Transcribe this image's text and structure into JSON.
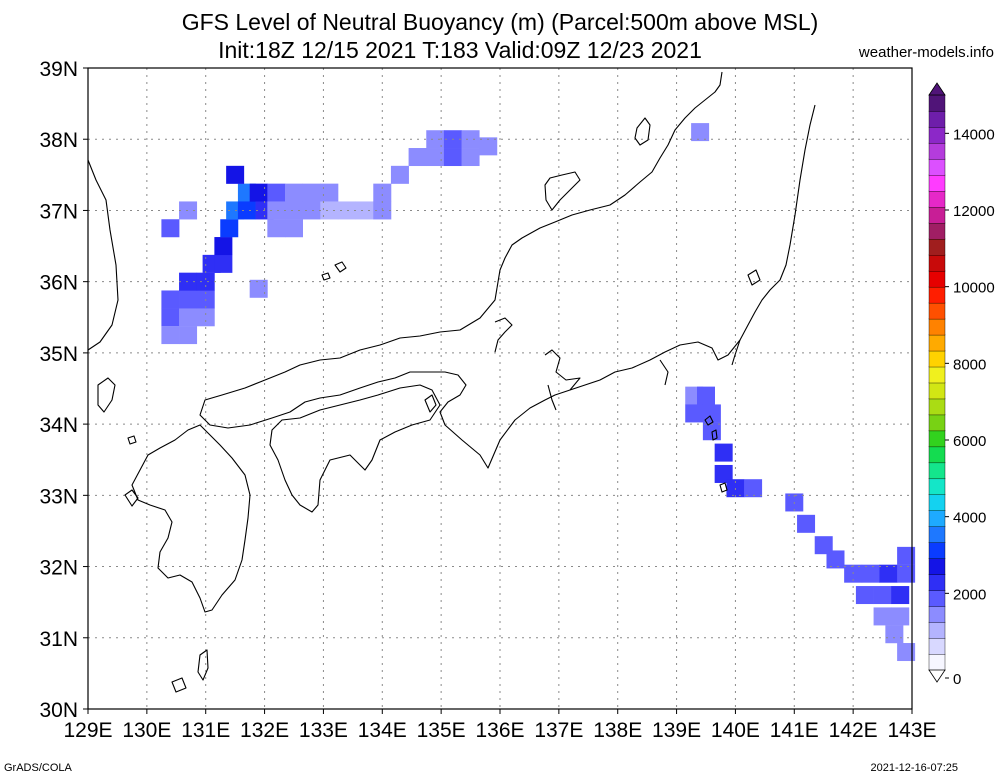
{
  "title_line1": "GFS Level of Neutral Buoyancy (m) (Parcel:500m above MSL)",
  "title_line2": "Init:18Z 12/15 2021 T:183 Valid:09Z 12/23 2021",
  "site": "weather-models.info",
  "footer_left": "GrADS/COLA",
  "footer_right": "2021-12-16-07:25",
  "map": {
    "lon_labels": [
      "129E",
      "130E",
      "131E",
      "132E",
      "133E",
      "134E",
      "135E",
      "136E",
      "137E",
      "138E",
      "139E",
      "140E",
      "141E",
      "142E",
      "143E"
    ],
    "lat_labels": [
      "30N",
      "31N",
      "32N",
      "33N",
      "34N",
      "35N",
      "36N",
      "37N",
      "38N",
      "39N"
    ],
    "lon_range": [
      129,
      143
    ],
    "lat_range": [
      30,
      39
    ],
    "grid": "dotted"
  },
  "colorbar": {
    "min": 0,
    "max": 15000,
    "tick_values": [
      0,
      2000,
      4000,
      6000,
      8000,
      10000,
      12000,
      14000
    ],
    "tick_labels": [
      "0",
      "2000",
      "4000",
      "6000",
      "8000",
      "10000",
      "12000",
      "14000"
    ],
    "colors": [
      "#f6f6ff",
      "#d8d8ff",
      "#b4b4ff",
      "#8c8cff",
      "#5a5aff",
      "#2f2ff5",
      "#1414e6",
      "#0a3cff",
      "#1e78ff",
      "#1eaaff",
      "#14d2f0",
      "#14e6c8",
      "#14e68c",
      "#14dc50",
      "#32d21e",
      "#78d214",
      "#aadc14",
      "#d2e614",
      "#f0f01e",
      "#ffd200",
      "#ffaa00",
      "#ff8200",
      "#ff5000",
      "#ff1e00",
      "#e60000",
      "#c80a0a",
      "#a01e1e",
      "#a01e64",
      "#c81e96",
      "#e628c8",
      "#ff3cff",
      "#dc50ff",
      "#b43cdc",
      "#8c28c8",
      "#6e1eaa",
      "#501478"
    ]
  },
  "cape_cells": [
    {
      "lon": 130.4,
      "lat": 35.5,
      "value": 1800
    },
    {
      "lon": 130.7,
      "lat": 35.5,
      "value": 1500
    },
    {
      "lon": 131.0,
      "lat": 35.5,
      "value": 1600
    },
    {
      "lon": 130.4,
      "lat": 35.25,
      "value": 1500
    },
    {
      "lon": 130.7,
      "lat": 35.25,
      "value": 1400
    },
    {
      "lon": 130.4,
      "lat": 35.75,
      "value": 1700
    },
    {
      "lon": 130.7,
      "lat": 35.75,
      "value": 2000
    },
    {
      "lon": 131.0,
      "lat": 35.75,
      "value": 1900
    },
    {
      "lon": 130.7,
      "lat": 36.0,
      "value": 2100
    },
    {
      "lon": 131.0,
      "lat": 36.0,
      "value": 2200
    },
    {
      "lon": 131.1,
      "lat": 36.25,
      "value": 2400
    },
    {
      "lon": 131.3,
      "lat": 36.25,
      "value": 2300
    },
    {
      "lon": 131.3,
      "lat": 36.5,
      "value": 2600
    },
    {
      "lon": 131.4,
      "lat": 36.75,
      "value": 3000
    },
    {
      "lon": 131.5,
      "lat": 37.0,
      "value": 3600
    },
    {
      "lon": 131.7,
      "lat": 37.25,
      "value": 3400
    },
    {
      "lon": 131.5,
      "lat": 37.5,
      "value": 2800
    },
    {
      "lon": 131.7,
      "lat": 37.0,
      "value": 3000
    },
    {
      "lon": 131.9,
      "lat": 37.25,
      "value": 2600
    },
    {
      "lon": 132.0,
      "lat": 37.0,
      "value": 2200
    },
    {
      "lon": 132.2,
      "lat": 37.25,
      "value": 1800
    },
    {
      "lon": 132.5,
      "lat": 37.25,
      "value": 1600
    },
    {
      "lon": 132.8,
      "lat": 37.25,
      "value": 1500
    },
    {
      "lon": 133.1,
      "lat": 37.25,
      "value": 1600
    },
    {
      "lon": 132.2,
      "lat": 37.0,
      "value": 1400
    },
    {
      "lon": 132.5,
      "lat": 37.0,
      "value": 1500
    },
    {
      "lon": 132.8,
      "lat": 37.0,
      "value": 1300
    },
    {
      "lon": 133.1,
      "lat": 37.0,
      "value": 1200
    },
    {
      "lon": 133.4,
      "lat": 37.0,
      "value": 1200
    },
    {
      "lon": 133.7,
      "lat": 37.0,
      "value": 1200
    },
    {
      "lon": 134.0,
      "lat": 37.0,
      "value": 1300
    },
    {
      "lon": 134.0,
      "lat": 37.25,
      "value": 1300
    },
    {
      "lon": 134.3,
      "lat": 37.5,
      "value": 1300
    },
    {
      "lon": 134.6,
      "lat": 37.75,
      "value": 1400
    },
    {
      "lon": 134.9,
      "lat": 37.75,
      "value": 1600
    },
    {
      "lon": 135.2,
      "lat": 37.75,
      "value": 1700
    },
    {
      "lon": 134.9,
      "lat": 38.0,
      "value": 1600
    },
    {
      "lon": 135.2,
      "lat": 38.0,
      "value": 1800
    },
    {
      "lon": 135.5,
      "lat": 38.0,
      "value": 1500
    },
    {
      "lon": 135.5,
      "lat": 37.75,
      "value": 1500
    },
    {
      "lon": 135.8,
      "lat": 37.9,
      "value": 1300
    },
    {
      "lon": 132.2,
      "lat": 36.75,
      "value": 1300
    },
    {
      "lon": 132.5,
      "lat": 36.75,
      "value": 1300
    },
    {
      "lon": 130.4,
      "lat": 36.75,
      "value": 1700
    },
    {
      "lon": 130.7,
      "lat": 37.0,
      "value": 1600
    },
    {
      "lon": 131.9,
      "lat": 35.9,
      "value": 1600
    },
    {
      "lon": 139.4,
      "lat": 38.1,
      "value": 1500
    },
    {
      "lon": 139.3,
      "lat": 34.4,
      "value": 1600
    },
    {
      "lon": 139.5,
      "lat": 34.4,
      "value": 1800
    },
    {
      "lon": 139.3,
      "lat": 34.15,
      "value": 1700
    },
    {
      "lon": 139.6,
      "lat": 34.15,
      "value": 1900
    },
    {
      "lon": 139.6,
      "lat": 33.9,
      "value": 2000
    },
    {
      "lon": 139.8,
      "lat": 33.6,
      "value": 2200
    },
    {
      "lon": 139.8,
      "lat": 33.3,
      "value": 2400
    },
    {
      "lon": 140.0,
      "lat": 33.1,
      "value": 2200
    },
    {
      "lon": 140.3,
      "lat": 33.1,
      "value": 1900
    },
    {
      "lon": 141.0,
      "lat": 32.9,
      "value": 1800
    },
    {
      "lon": 141.2,
      "lat": 32.6,
      "value": 1700
    },
    {
      "lon": 141.5,
      "lat": 32.3,
      "value": 1700
    },
    {
      "lon": 141.7,
      "lat": 32.1,
      "value": 1800
    },
    {
      "lon": 142.0,
      "lat": 31.9,
      "value": 1900
    },
    {
      "lon": 142.3,
      "lat": 31.9,
      "value": 2000
    },
    {
      "lon": 142.6,
      "lat": 31.9,
      "value": 2100
    },
    {
      "lon": 142.9,
      "lat": 31.9,
      "value": 2000
    },
    {
      "lon": 142.9,
      "lat": 32.15,
      "value": 1800
    },
    {
      "lon": 142.2,
      "lat": 31.6,
      "value": 1800
    },
    {
      "lon": 142.5,
      "lat": 31.6,
      "value": 2000
    },
    {
      "lon": 142.8,
      "lat": 31.6,
      "value": 2100
    },
    {
      "lon": 142.5,
      "lat": 31.3,
      "value": 1500
    },
    {
      "lon": 142.8,
      "lat": 31.3,
      "value": 1600
    },
    {
      "lon": 142.7,
      "lat": 31.05,
      "value": 1400
    },
    {
      "lon": 142.9,
      "lat": 30.8,
      "value": 1300
    }
  ]
}
